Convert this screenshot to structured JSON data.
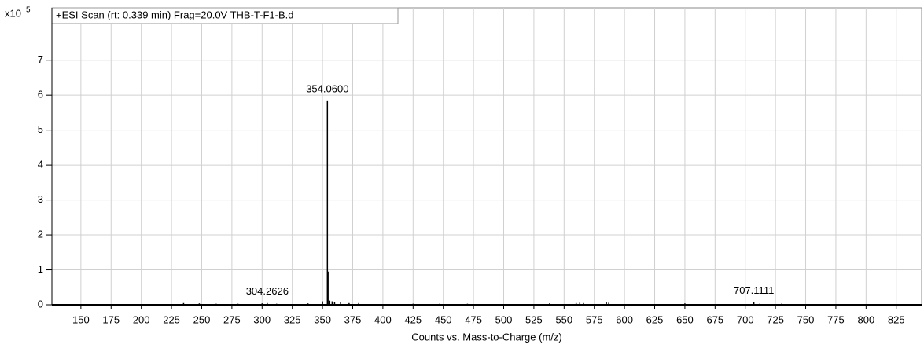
{
  "chart_data": {
    "type": "spectrum",
    "title": "+ESI Scan (rt: 0.339 min) Frag=20.0V THB-T-F1-B.d",
    "y_multiplier": "x10",
    "y_exponent": "5",
    "x_label": "Counts vs. Mass-to-Charge (m/z)",
    "xlim": [
      126,
      846
    ],
    "ylim": [
      0,
      8.5
    ],
    "xticks": [
      150,
      175,
      200,
      225,
      250,
      275,
      300,
      325,
      350,
      375,
      400,
      425,
      450,
      475,
      500,
      525,
      550,
      575,
      600,
      625,
      650,
      675,
      700,
      725,
      750,
      775,
      800,
      825
    ],
    "yticks": [
      0,
      1,
      2,
      3,
      4,
      5,
      6,
      7
    ],
    "grid": true,
    "color": "#000000",
    "x": [
      235,
      248,
      262,
      280,
      300,
      304.26,
      312,
      320,
      338,
      350,
      354.06,
      355.06,
      356,
      358,
      360,
      365,
      372,
      380,
      425,
      447,
      470,
      538,
      560,
      563,
      566,
      585,
      587,
      650,
      707.11,
      712,
      730,
      790,
      825
    ],
    "values": [
      0.05,
      0.04,
      0.03,
      0.03,
      0.04,
      0.05,
      0.03,
      0.02,
      0.04,
      0.1,
      5.85,
      0.95,
      0.12,
      0.1,
      0.08,
      0.07,
      0.05,
      0.05,
      0.03,
      0.03,
      0.03,
      0.04,
      0.05,
      0.06,
      0.05,
      0.08,
      0.06,
      0.04,
      0.08,
      0.03,
      0.03,
      0.02,
      0.02
    ],
    "peak_labels": [
      {
        "x": {
          "value": 354.06,
          "label": "354.0600"
        },
        "y": 5.85
      },
      {
        "x": {
          "value": 304.2626,
          "label": "304.2626"
        },
        "y": 0.05
      },
      {
        "x": {
          "value": 707.1111,
          "label": "707.1111"
        },
        "y": 0.08
      }
    ]
  }
}
